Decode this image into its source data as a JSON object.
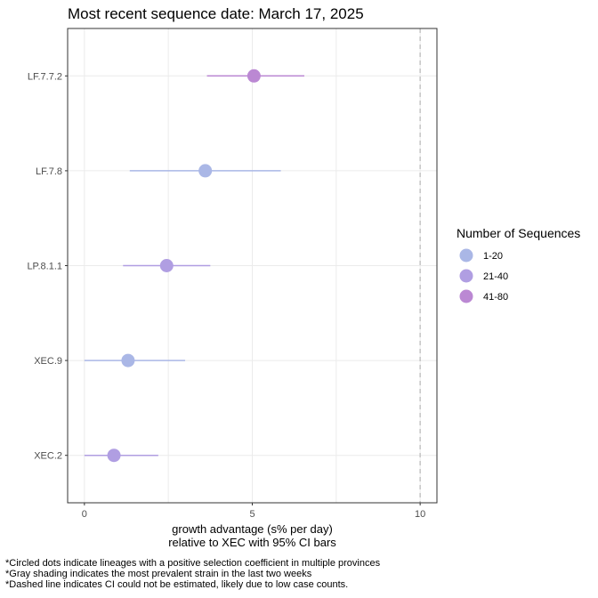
{
  "chart_data": {
    "type": "scatter",
    "title": "Most recent sequence date: March 17, 2025",
    "xlabel_lines": [
      "growth advantage (s% per day)",
      "relative to  XEC  with 95% CI bars"
    ],
    "ylabel": "",
    "xlim": [
      -0.5,
      10.5
    ],
    "x_ticks": [
      0,
      5,
      10
    ],
    "grid": true,
    "reference_line": {
      "x": 10,
      "style": "dashed"
    },
    "categories": [
      "LF.7.7.2",
      "LF.7.8",
      "LP.8.1.1",
      "XEC.9",
      "XEC.2"
    ],
    "points": [
      {
        "lineage": "LF.7.7.2",
        "estimate": 5.05,
        "ci_low": 3.65,
        "ci_high": 6.55,
        "group": "41-80"
      },
      {
        "lineage": "LF.7.8",
        "estimate": 3.6,
        "ci_low": 1.35,
        "ci_high": 5.85,
        "group": "1-20"
      },
      {
        "lineage": "LP.8.1.1",
        "estimate": 2.45,
        "ci_low": 1.15,
        "ci_high": 3.75,
        "group": "21-40"
      },
      {
        "lineage": "XEC.9",
        "estimate": 1.3,
        "ci_low": 0.0,
        "ci_high": 3.0,
        "group": "1-20"
      },
      {
        "lineage": "XEC.2",
        "estimate": 0.88,
        "ci_low": 0.0,
        "ci_high": 2.2,
        "group": "21-40"
      }
    ],
    "legend": {
      "title": "Number of Sequences",
      "placement": "right",
      "entries": [
        {
          "label": "1-20",
          "color": "#aab7e6"
        },
        {
          "label": "21-40",
          "color": "#b09ee2"
        },
        {
          "label": "41-80",
          "color": "#bb88d3"
        }
      ]
    }
  },
  "footnotes": [
    "*Circled dots indicate lineages with a positive selection coefficient in multiple provinces",
    "*Gray shading indicates the most prevalent strain in the last two weeks",
    "*Dashed line indicates CI could not be estimated, likely due to low case counts."
  ]
}
